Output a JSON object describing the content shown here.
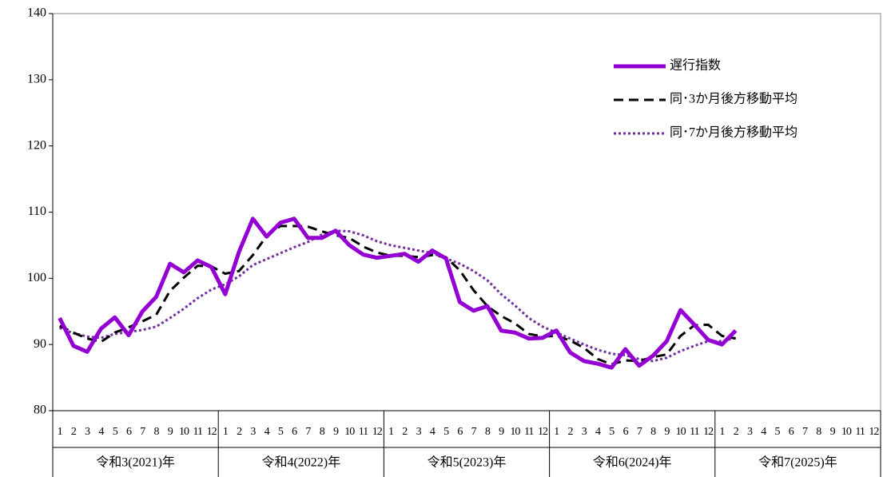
{
  "chart_data": {
    "type": "line",
    "categories": [
      "1",
      "2",
      "3",
      "4",
      "5",
      "6",
      "7",
      "8",
      "9",
      "10",
      "11",
      "12",
      "1",
      "2",
      "3",
      "4",
      "5",
      "6",
      "7",
      "8",
      "9",
      "10",
      "11",
      "12",
      "1",
      "2",
      "3",
      "4",
      "5",
      "6",
      "7",
      "8",
      "9",
      "10",
      "11",
      "12",
      "1",
      "2",
      "3",
      "4",
      "5",
      "6",
      "7",
      "8",
      "9",
      "10",
      "11",
      "12",
      "1",
      "2",
      "3",
      "4",
      "5",
      "6",
      "7",
      "8",
      "9",
      "10",
      "11",
      "12"
    ],
    "groups": [
      "令和3(2021)年",
      "令和4(2022)年",
      "令和5(2023)年",
      "令和6(2024)年",
      "令和7(2025)年"
    ],
    "series": [
      {
        "name": "遅行指数",
        "color": "#9400d3",
        "style": "solid",
        "values": [
          94.0,
          89.8,
          88.9,
          92.4,
          94.1,
          91.4,
          95.0,
          97.2,
          102.2,
          100.9,
          102.7,
          101.7,
          97.6,
          104.0,
          109.0,
          106.3,
          108.4,
          109.0,
          106.1,
          106.1,
          107.2,
          105.0,
          103.6,
          103.1,
          103.4,
          103.7,
          102.5,
          104.2,
          103.0,
          96.4,
          95.1,
          95.8,
          92.1,
          91.8,
          90.9,
          91.0,
          92.1,
          88.8,
          87.5,
          87.1,
          86.5,
          89.3,
          86.8,
          88.3,
          90.5,
          95.2,
          93.0,
          90.7,
          90.0,
          92.1,
          null,
          null,
          null,
          null,
          null,
          null,
          null,
          null,
          null,
          null
        ]
      },
      {
        "name": "同･3か月後方移動平均",
        "color": "#000000",
        "style": "dashed",
        "values": [
          92.8,
          91.8,
          90.9,
          90.4,
          91.8,
          92.6,
          93.5,
          94.5,
          98.1,
          100.1,
          101.9,
          101.8,
          100.7,
          101.1,
          103.5,
          106.4,
          107.9,
          107.9,
          107.8,
          107.1,
          106.5,
          106.1,
          104.8,
          103.9,
          103.4,
          103.4,
          103.2,
          103.5,
          103.2,
          101.2,
          98.2,
          95.8,
          94.3,
          93.2,
          91.6,
          91.2,
          91.3,
          90.6,
          89.5,
          87.8,
          87.0,
          87.6,
          87.5,
          88.1,
          88.5,
          91.3,
          92.9,
          93.0,
          91.3,
          90.9,
          null,
          null,
          null,
          null,
          null,
          null,
          null,
          null,
          null,
          null
        ]
      },
      {
        "name": "同･7か月後方移動平均",
        "color": "#7030a0",
        "style": "dotted",
        "values": [
          92.5,
          91.7,
          91.2,
          91.0,
          91.6,
          91.9,
          92.2,
          92.7,
          94.0,
          95.4,
          97.0,
          98.3,
          99.1,
          100.3,
          102.0,
          102.9,
          103.8,
          104.7,
          105.5,
          106.6,
          107.2,
          107.1,
          106.5,
          105.6,
          105.0,
          104.6,
          104.2,
          103.8,
          103.0,
          102.2,
          101.1,
          99.7,
          97.6,
          95.9,
          94.0,
          92.7,
          91.8,
          90.9,
          90.0,
          89.2,
          88.6,
          88.4,
          87.8,
          87.5,
          88.0,
          89.0,
          89.8,
          90.5,
          90.5,
          91.0,
          null,
          null,
          null,
          null,
          null,
          null,
          null,
          null,
          null,
          null
        ]
      }
    ],
    "ylim": [
      80,
      140
    ],
    "yticks": [
      80,
      90,
      100,
      110,
      120,
      130,
      140
    ],
    "grid": false,
    "legend": "top-right"
  }
}
